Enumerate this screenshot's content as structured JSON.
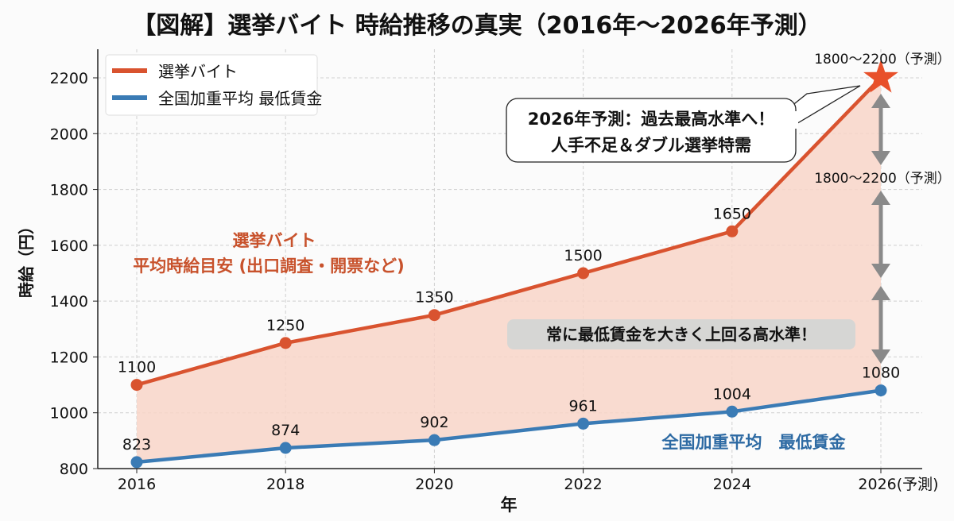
{
  "chart_data": {
    "type": "line",
    "title": "【図解】選挙バイト 時給推移の真実（2016年〜2026年予測）",
    "xlabel": "年",
    "ylabel": "時給（円）",
    "x": [
      2016,
      2018,
      2020,
      2022,
      2024,
      2026
    ],
    "xtick_labels": [
      "2016",
      "2018",
      "2020",
      "2022",
      "2024",
      "2026(予測)"
    ],
    "ylim": [
      800,
      2300
    ],
    "yticks": [
      800,
      1000,
      1200,
      1400,
      1600,
      1800,
      2000,
      2200
    ],
    "grid": true,
    "legend_position": "top-left",
    "series": [
      {
        "name": "選挙バイト",
        "color": "#d9532f",
        "values": [
          1100,
          1250,
          1350,
          1500,
          1650,
          2200
        ],
        "point_labels": [
          "1100",
          "1250",
          "1350",
          "1500",
          "1650",
          ""
        ]
      },
      {
        "name": "全国加重平均 最低賃金",
        "color": "#3a7bb5",
        "values": [
          823,
          874,
          902,
          961,
          1004,
          1080
        ],
        "point_labels": [
          "823",
          "874",
          "902",
          "961",
          "1004",
          "1080"
        ]
      }
    ],
    "fill_between_color": "#f8d5c8",
    "annotations": {
      "star_label": "1800〜2200（予測）",
      "range_label": "1800〜2200（予測）",
      "callout_line1": "2026年予測：過去最高水準へ！",
      "callout_line2": "人手不足＆ダブル選挙特需",
      "orange_label_line1": "選挙バイト",
      "orange_label_line2": "平均時給目安 (出口調査・開票など)",
      "highlight": "常に最低賃金を大きく上回る高水準！",
      "blue_label": "全国加重平均　最低賃金"
    }
  }
}
